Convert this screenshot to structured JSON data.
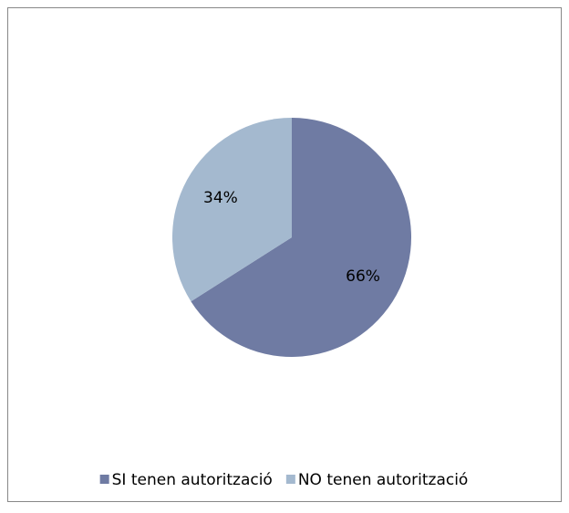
{
  "chart_data": {
    "type": "pie",
    "categories": [
      "SI tenen autorització",
      "NO tenen autorització"
    ],
    "values": [
      66,
      34
    ],
    "value_labels": [
      "66%",
      "34%"
    ],
    "colors": [
      "#6f7ba3",
      "#a4b9cf"
    ],
    "legend": "bottom"
  }
}
